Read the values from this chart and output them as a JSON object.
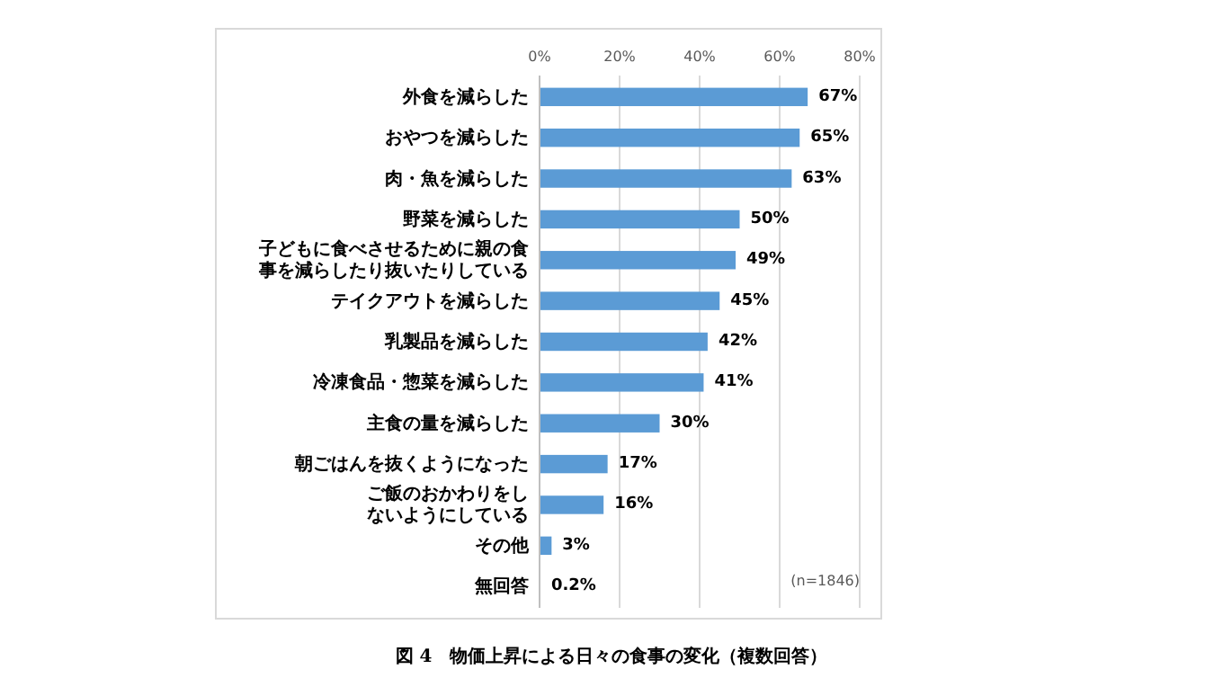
{
  "chart_data": {
    "type": "bar",
    "orientation": "horizontal",
    "title": "図 4　物価上昇による日々の食事の変化（複数回答）",
    "categories": [
      "外食を減らした",
      "おやつを減らした",
      "肉・魚を減らした",
      "野菜を減らした",
      "子どもに食べさせるために親の食事を減らしたり抜いたりしている",
      "テイクアウトを減らした",
      "乳製品を減らした",
      "冷凍食品・惣菜を減らした",
      "主食の量を減らした",
      "朝ごはんを抜くようになった",
      "ご飯のおかわりをしないようにしている",
      "その他",
      "無回答"
    ],
    "values": [
      67,
      65,
      63,
      50,
      49,
      45,
      42,
      41,
      30,
      17,
      16,
      3,
      0.2
    ],
    "value_labels": [
      "67%",
      "65%",
      "63%",
      "50%",
      "49%",
      "45%",
      "42%",
      "41%",
      "30%",
      "17%",
      "16%",
      "3%",
      "0.2%"
    ],
    "color": "#5b9bd5",
    "xlim": [
      0,
      80
    ],
    "xticks": [
      {
        "value": 0,
        "label": "0%"
      },
      {
        "value": 20,
        "label": "20%"
      },
      {
        "value": 40,
        "label": "40%"
      },
      {
        "value": 60,
        "label": "60%"
      },
      {
        "value": 80,
        "label": "80%"
      }
    ],
    "grid": "x",
    "annotations": [
      "(n=1846)"
    ]
  }
}
